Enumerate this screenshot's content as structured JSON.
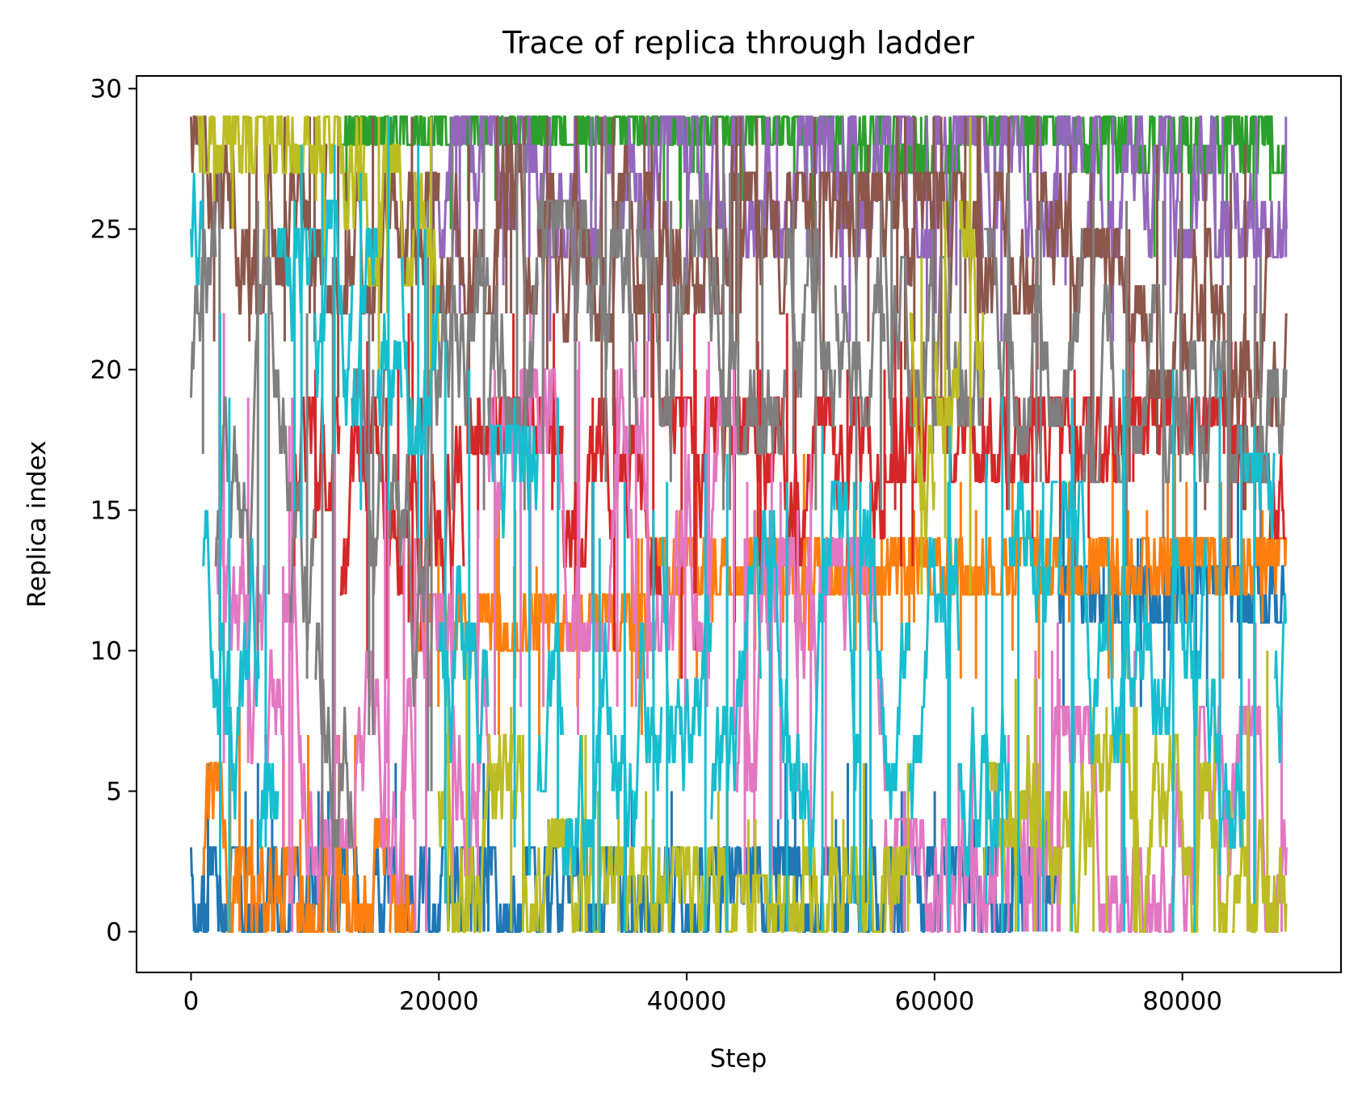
{
  "chart_data": {
    "type": "line",
    "title": "Trace of replica through ladder",
    "xlabel": "Step",
    "ylabel": "Replica index",
    "xlim": [
      -4400,
      92800
    ],
    "ylim": [
      -1.45,
      30.45
    ],
    "x_max_step": 88400,
    "grid": false,
    "legend": false,
    "x_ticks": [
      {
        "value": 0,
        "label": "0"
      },
      {
        "value": 20000,
        "label": "20000"
      },
      {
        "value": 40000,
        "label": "40000"
      },
      {
        "value": 60000,
        "label": "60000"
      },
      {
        "value": 80000,
        "label": "80000"
      }
    ],
    "y_ticks": [
      {
        "value": 0,
        "label": "0"
      },
      {
        "value": 5,
        "label": "5"
      },
      {
        "value": 10,
        "label": "10"
      },
      {
        "value": 15,
        "label": "15"
      },
      {
        "value": 20,
        "label": "20"
      },
      {
        "value": 25,
        "label": "25"
      },
      {
        "value": 30,
        "label": "30"
      }
    ],
    "series": [
      {
        "color": "#1f77b4",
        "segments": [
          [
            0,
            0,
            3
          ],
          [
            40000,
            0,
            3
          ],
          [
            60000,
            0,
            3
          ],
          [
            64000,
            0,
            3
          ],
          [
            70000,
            11,
            13
          ]
        ]
      },
      {
        "color": "#ff7f0e",
        "segments": [
          [
            1000,
            0,
            6
          ],
          [
            4000,
            0,
            3
          ],
          [
            8500,
            0,
            4
          ],
          [
            16000,
            0,
            2
          ],
          [
            18000,
            10,
            12
          ],
          [
            37000,
            12,
            14
          ]
        ]
      },
      {
        "color": "#2ca02c",
        "segments": [
          [
            12000,
            28,
            29
          ],
          [
            20000,
            28,
            29
          ],
          [
            24000,
            28,
            29
          ],
          [
            50000,
            27,
            29
          ],
          [
            56000,
            27,
            29
          ],
          [
            62000,
            28,
            29
          ],
          [
            72000,
            27,
            29
          ],
          [
            82000,
            27,
            29
          ],
          [
            86000,
            27,
            29
          ]
        ]
      },
      {
        "color": "#d62728",
        "segments": [
          [
            8000,
            15,
            19
          ],
          [
            12000,
            12,
            19
          ],
          [
            16000,
            12,
            19
          ],
          [
            22000,
            17,
            19
          ],
          [
            30000,
            13,
            19
          ],
          [
            34000,
            12,
            19
          ],
          [
            38000,
            12,
            19
          ],
          [
            44000,
            14,
            19
          ],
          [
            48000,
            13,
            19
          ],
          [
            52000,
            14,
            19
          ],
          [
            56000,
            16,
            19
          ],
          [
            64000,
            16,
            19
          ],
          [
            68000,
            16,
            19
          ],
          [
            72000,
            16,
            19
          ],
          [
            76000,
            17,
            19
          ],
          [
            80000,
            17,
            19
          ],
          [
            84000,
            16,
            19
          ],
          [
            87000,
            14,
            19
          ]
        ]
      },
      {
        "color": "#9467bd",
        "segments": [
          [
            20000,
            24,
            29
          ],
          [
            24000,
            25,
            29
          ],
          [
            28000,
            24,
            29
          ],
          [
            32000,
            24,
            29
          ],
          [
            36000,
            24,
            29
          ],
          [
            40000,
            24,
            29
          ],
          [
            44000,
            24,
            29
          ],
          [
            48000,
            24,
            29
          ],
          [
            52000,
            24,
            29
          ],
          [
            56000,
            24,
            29
          ],
          [
            60000,
            24,
            29
          ],
          [
            64000,
            24,
            29
          ],
          [
            68000,
            24,
            29
          ],
          [
            72000,
            24,
            29
          ],
          [
            76000,
            24,
            29
          ],
          [
            80000,
            24,
            29
          ],
          [
            84000,
            24,
            29
          ],
          [
            86000,
            24,
            29
          ]
        ]
      },
      {
        "color": "#8c564b",
        "segments": [
          [
            0,
            22,
            29
          ],
          [
            2000,
            22,
            29
          ],
          [
            6000,
            23,
            28
          ],
          [
            11000,
            22,
            27
          ],
          [
            20000,
            22,
            28
          ],
          [
            28000,
            21,
            28
          ],
          [
            36000,
            22,
            27
          ],
          [
            44000,
            22,
            27
          ],
          [
            52000,
            22,
            27
          ],
          [
            60000,
            22,
            27
          ],
          [
            68000,
            22,
            27
          ],
          [
            72000,
            19,
            25
          ],
          [
            76000,
            19,
            25
          ],
          [
            80000,
            18,
            25
          ],
          [
            84000,
            18,
            25
          ],
          [
            87000,
            18,
            25
          ]
        ]
      },
      {
        "color": "#e377c2",
        "segments": [
          [
            2000,
            6,
            19
          ],
          [
            6000,
            3,
            13
          ],
          [
            7500,
            1,
            16
          ],
          [
            12000,
            3,
            13
          ],
          [
            16000,
            1,
            13
          ],
          [
            18000,
            2,
            12
          ],
          [
            24000,
            10,
            20
          ],
          [
            36000,
            10,
            19
          ],
          [
            44000,
            5,
            14
          ],
          [
            56000,
            0,
            4
          ],
          [
            68000,
            0,
            8
          ]
        ]
      },
      {
        "color": "#7f7f7f",
        "segments": [
          [
            0,
            19,
            29
          ],
          [
            2000,
            10,
            26
          ],
          [
            6000,
            15,
            24
          ],
          [
            8000,
            10,
            21
          ],
          [
            10000,
            0,
            24
          ],
          [
            13000,
            9,
            20
          ],
          [
            16000,
            7,
            26
          ],
          [
            20000,
            17,
            26
          ],
          [
            24000,
            18,
            26
          ],
          [
            28000,
            18,
            26
          ],
          [
            32000,
            18,
            26
          ],
          [
            36000,
            18,
            26
          ],
          [
            40000,
            18,
            26
          ],
          [
            44000,
            17,
            25
          ],
          [
            48000,
            18,
            25
          ],
          [
            52000,
            18,
            25
          ],
          [
            56000,
            18,
            24
          ],
          [
            60000,
            18,
            24
          ],
          [
            64000,
            17,
            25
          ],
          [
            68000,
            18,
            25
          ],
          [
            72000,
            16,
            23
          ],
          [
            76000,
            16,
            23
          ],
          [
            80000,
            16,
            21
          ],
          [
            84000,
            16,
            21
          ],
          [
            87000,
            16,
            20
          ]
        ]
      },
      {
        "color": "#bcbd22",
        "segments": [
          [
            500,
            27,
            29
          ],
          [
            4000,
            27,
            29
          ],
          [
            8000,
            27,
            29
          ],
          [
            12000,
            25,
            29
          ],
          [
            14000,
            23,
            28
          ],
          [
            18000,
            21,
            27
          ],
          [
            20000,
            0,
            7
          ],
          [
            24000,
            0,
            7
          ],
          [
            26000,
            0,
            7
          ],
          [
            28000,
            0,
            4
          ],
          [
            32000,
            0,
            3
          ],
          [
            36000,
            0,
            3
          ],
          [
            40000,
            0,
            3
          ],
          [
            44000,
            0,
            2
          ],
          [
            48000,
            0,
            3
          ],
          [
            52000,
            0,
            3
          ],
          [
            56000,
            0,
            3
          ],
          [
            58000,
            14,
            22
          ],
          [
            60000,
            14,
            24
          ],
          [
            62000,
            14,
            26
          ],
          [
            64000,
            0,
            6
          ],
          [
            66000,
            0,
            7
          ],
          [
            68000,
            0,
            6
          ],
          [
            70000,
            0,
            6
          ],
          [
            72000,
            0,
            7
          ],
          [
            76000,
            0,
            7
          ],
          [
            80000,
            0,
            6
          ],
          [
            84000,
            0,
            7
          ],
          [
            87000,
            0,
            7
          ]
        ]
      },
      {
        "color": "#17becf",
        "segments": [
          [
            0,
            3,
            29
          ],
          [
            1000,
            2,
            20
          ],
          [
            3000,
            0,
            16
          ],
          [
            5500,
            3,
            20
          ],
          [
            7000,
            16,
            25
          ],
          [
            10000,
            17,
            26
          ],
          [
            13000,
            17,
            25
          ],
          [
            15000,
            17,
            26
          ],
          [
            17000,
            17,
            25
          ],
          [
            20000,
            3,
            20
          ],
          [
            24000,
            5,
            18
          ],
          [
            28000,
            5,
            18
          ],
          [
            30000,
            1,
            14
          ],
          [
            34000,
            1,
            14
          ],
          [
            38000,
            1,
            14
          ],
          [
            42000,
            1,
            14
          ],
          [
            46000,
            1,
            15
          ],
          [
            50000,
            1,
            16
          ],
          [
            54000,
            0,
            15
          ],
          [
            58000,
            2,
            15
          ],
          [
            62000,
            2,
            16
          ],
          [
            66000,
            3,
            16
          ],
          [
            70000,
            1,
            16
          ],
          [
            74000,
            3,
            17
          ],
          [
            78000,
            3,
            17
          ],
          [
            82000,
            3,
            18
          ],
          [
            85000,
            3,
            17
          ],
          [
            87500,
            3,
            17
          ]
        ]
      }
    ]
  }
}
